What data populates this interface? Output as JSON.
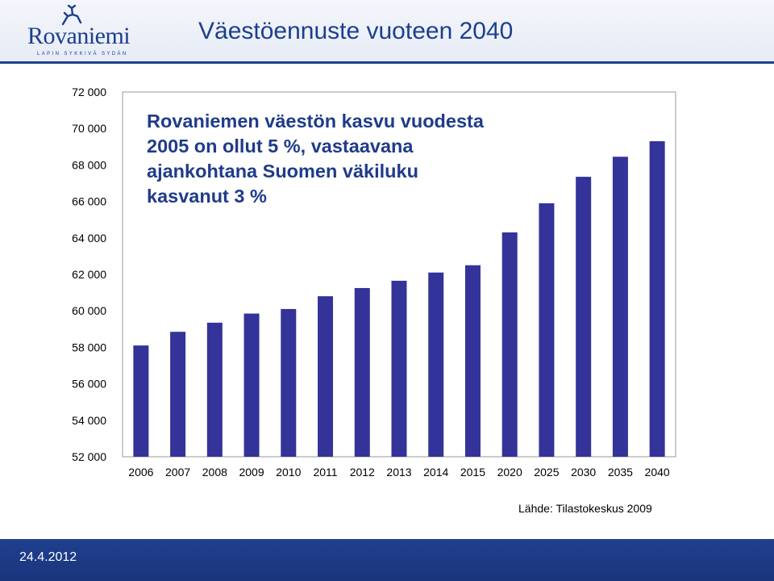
{
  "header": {
    "logo_text": "Rovaniemi",
    "logo_tagline": "LAPIN SYKKIVÄ SYDÄN",
    "title": "Väestöennuste vuoteen 2040"
  },
  "footer": {
    "date": "24.4.2012"
  },
  "source": "Lähde: Tilastokeskus 2009",
  "colors": {
    "bar": "#333399",
    "header_accent": "#1f3f8f",
    "annotation": "#1f3b8a",
    "plot_bg": "#ffffff"
  },
  "chart_data": {
    "type": "bar",
    "title": "",
    "xlabel": "",
    "ylabel": "",
    "annotation_lines": [
      "Rovaniemen väestön kasvu vuodesta",
      "2005 on ollut 5 %, vastaavana",
      "ajankohtana Suomen väkiluku",
      "kasvanut 3 %"
    ],
    "categories": [
      "2006",
      "2007",
      "2008",
      "2009",
      "2010",
      "2011",
      "2012",
      "2013",
      "2014",
      "2015",
      "2020",
      "2025",
      "2030",
      "2035",
      "2040"
    ],
    "values": [
      58100,
      58850,
      59350,
      59850,
      60100,
      60800,
      61250,
      61650,
      62100,
      62500,
      64300,
      65900,
      67350,
      68450,
      69300
    ],
    "ylim": [
      52000,
      72000
    ],
    "yticks": [
      52000,
      54000,
      56000,
      58000,
      60000,
      62000,
      64000,
      66000,
      68000,
      70000,
      72000
    ],
    "ytick_labels": [
      "52 000",
      "54 000",
      "56 000",
      "58 000",
      "60 000",
      "62 000",
      "64 000",
      "66 000",
      "68 000",
      "70 000",
      "72 000"
    ],
    "grid": false,
    "legend": "none"
  }
}
